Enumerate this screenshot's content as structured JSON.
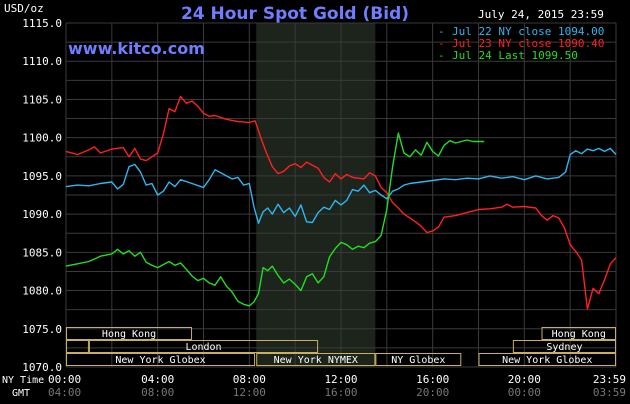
{
  "header": {
    "unit": "USD/oz",
    "title": "24 Hour Spot Gold (Bid)",
    "date": "July 24, 2015 23:59",
    "website": "www.kitco.com"
  },
  "colors": {
    "background": "#000000",
    "grid": "#3a3a3a",
    "shade": "#1c241c",
    "title": "#6f7dff",
    "axis_text": "#ffffff",
    "band_border": "#c8b060",
    "band_text": "#ffffff"
  },
  "legend": [
    {
      "label": "Jul 22 NY close 1094.00",
      "color": "#2fb6f0"
    },
    {
      "label": "Jul 23 NY close 1090.40",
      "color": "#ff2020"
    },
    {
      "label": "Jul 24 Last 1099.50",
      "color": "#22dd22"
    }
  ],
  "axes": {
    "y_ticks": [
      "1115.0",
      "1110.0",
      "1105.0",
      "1100.0",
      "1095.0",
      "1090.0",
      "1085.0",
      "1080.0",
      "1075.0",
      "1070.0"
    ],
    "x_ticks_ny": [
      "00:00",
      "04:00",
      "08:00",
      "12:00",
      "16:00",
      "20:00",
      "23:59"
    ],
    "x_ticks_gmt": [
      "04:00",
      "08:00",
      "12:00",
      "16:00",
      "20:00",
      "00:00",
      "03:59"
    ],
    "ny_time_label": "NY Time",
    "gmt_label": "GMT"
  },
  "markets": {
    "row1": [
      {
        "label": "Hong Kong",
        "start": 0,
        "end": 5.5
      },
      {
        "label": "Hong Kong",
        "start": 20.75,
        "end": 24
      }
    ],
    "row2": [
      {
        "label": "",
        "start": 0,
        "end": 1
      },
      {
        "label": "London",
        "start": 1,
        "end": 11
      },
      {
        "label": "Sydney",
        "start": 19.5,
        "end": 24
      }
    ],
    "row3": [
      {
        "label": "New York Globex",
        "start": 0,
        "end": 8.25
      },
      {
        "label": "New York NYMEX",
        "start": 8.3,
        "end": 13.5
      },
      {
        "label": "NY Globex",
        "start": 13.5,
        "end": 17.25
      },
      {
        "label": "New York Globex",
        "start": 18,
        "end": 24
      }
    ]
  },
  "chart_data": {
    "type": "line",
    "title": "24 Hour Spot Gold (Bid)",
    "ylabel": "USD/oz",
    "xlabel": "",
    "x_unit": "hours (NY time)",
    "xlim": [
      0,
      24
    ],
    "ylim": [
      1070,
      1115
    ],
    "shaded_range_hours": [
      8.3,
      13.5
    ],
    "series": [
      {
        "name": "Jul 22 NY close 1094.00",
        "color": "#2fb6f0",
        "points": [
          [
            0,
            1093.6
          ],
          [
            0.5,
            1093.8
          ],
          [
            1,
            1093.7
          ],
          [
            1.5,
            1094.0
          ],
          [
            2,
            1094.2
          ],
          [
            2.25,
            1093.3
          ],
          [
            2.5,
            1093.9
          ],
          [
            2.75,
            1096.2
          ],
          [
            3,
            1096.5
          ],
          [
            3.25,
            1095.5
          ],
          [
            3.5,
            1093.8
          ],
          [
            3.75,
            1094.0
          ],
          [
            4,
            1092.5
          ],
          [
            4.25,
            1093.0
          ],
          [
            4.5,
            1094.2
          ],
          [
            4.75,
            1093.6
          ],
          [
            5,
            1094.5
          ],
          [
            5.5,
            1094.0
          ],
          [
            6,
            1093.5
          ],
          [
            6.25,
            1094.5
          ],
          [
            6.5,
            1095.8
          ],
          [
            6.75,
            1095.4
          ],
          [
            7,
            1095.0
          ],
          [
            7.25,
            1094.6
          ],
          [
            7.5,
            1094.8
          ],
          [
            7.75,
            1093.8
          ],
          [
            8,
            1094.0
          ],
          [
            8.2,
            1091.0
          ],
          [
            8.4,
            1088.8
          ],
          [
            8.6,
            1090.3
          ],
          [
            8.8,
            1090.8
          ],
          [
            9,
            1090.0
          ],
          [
            9.25,
            1091.3
          ],
          [
            9.5,
            1090.2
          ],
          [
            9.75,
            1090.8
          ],
          [
            10,
            1089.7
          ],
          [
            10.25,
            1091.2
          ],
          [
            10.5,
            1089.0
          ],
          [
            10.75,
            1088.9
          ],
          [
            11,
            1090.2
          ],
          [
            11.25,
            1090.9
          ],
          [
            11.5,
            1090.6
          ],
          [
            11.75,
            1091.8
          ],
          [
            12,
            1091.2
          ],
          [
            12.25,
            1091.8
          ],
          [
            12.5,
            1093.2
          ],
          [
            12.75,
            1093.0
          ],
          [
            13,
            1093.8
          ],
          [
            13.25,
            1092.8
          ],
          [
            13.5,
            1093.1
          ],
          [
            13.75,
            1092.5
          ],
          [
            14,
            1092.0
          ],
          [
            14.25,
            1093.0
          ],
          [
            14.5,
            1093.3
          ],
          [
            14.75,
            1093.8
          ],
          [
            15,
            1094.0
          ],
          [
            15.5,
            1094.2
          ],
          [
            16,
            1094.4
          ],
          [
            16.5,
            1094.6
          ],
          [
            17,
            1094.5
          ],
          [
            17.5,
            1094.7
          ],
          [
            18,
            1094.6
          ],
          [
            18.5,
            1095.0
          ],
          [
            19,
            1094.7
          ],
          [
            19.5,
            1094.9
          ],
          [
            20,
            1094.5
          ],
          [
            20.5,
            1095.0
          ],
          [
            21,
            1094.6
          ],
          [
            21.5,
            1094.8
          ],
          [
            21.8,
            1095.5
          ],
          [
            22,
            1097.8
          ],
          [
            22.25,
            1098.3
          ],
          [
            22.5,
            1097.9
          ],
          [
            22.75,
            1098.5
          ],
          [
            23,
            1098.3
          ],
          [
            23.25,
            1098.6
          ],
          [
            23.5,
            1098.2
          ],
          [
            23.75,
            1098.6
          ],
          [
            24,
            1097.8
          ]
        ]
      },
      {
        "name": "Jul 23 NY close 1090.40",
        "color": "#ff2020",
        "points": [
          [
            0,
            1098.2
          ],
          [
            0.5,
            1097.8
          ],
          [
            1,
            1098.4
          ],
          [
            1.25,
            1098.8
          ],
          [
            1.5,
            1098.0
          ],
          [
            2,
            1098.5
          ],
          [
            2.5,
            1098.7
          ],
          [
            2.75,
            1097.5
          ],
          [
            3,
            1098.6
          ],
          [
            3.25,
            1097.2
          ],
          [
            3.5,
            1097.0
          ],
          [
            3.75,
            1097.5
          ],
          [
            4,
            1098.0
          ],
          [
            4.25,
            1100.5
          ],
          [
            4.5,
            1103.8
          ],
          [
            4.75,
            1103.4
          ],
          [
            5,
            1105.4
          ],
          [
            5.25,
            1104.5
          ],
          [
            5.5,
            1104.8
          ],
          [
            5.75,
            1104.1
          ],
          [
            6,
            1103.2
          ],
          [
            6.25,
            1102.8
          ],
          [
            6.5,
            1102.9
          ],
          [
            7,
            1102.4
          ],
          [
            7.5,
            1102.1
          ],
          [
            8,
            1102.0
          ],
          [
            8.25,
            1102.2
          ],
          [
            8.5,
            1100.0
          ],
          [
            8.75,
            1098.0
          ],
          [
            9,
            1096.2
          ],
          [
            9.25,
            1095.3
          ],
          [
            9.5,
            1095.6
          ],
          [
            9.75,
            1096.3
          ],
          [
            10,
            1096.6
          ],
          [
            10.25,
            1096.1
          ],
          [
            10.5,
            1096.8
          ],
          [
            11,
            1096.0
          ],
          [
            11.25,
            1094.8
          ],
          [
            11.5,
            1094.2
          ],
          [
            11.75,
            1095.3
          ],
          [
            12,
            1094.6
          ],
          [
            12.25,
            1095.2
          ],
          [
            12.5,
            1094.8
          ],
          [
            13,
            1094.6
          ],
          [
            13.25,
            1095.4
          ],
          [
            13.5,
            1095.0
          ],
          [
            13.75,
            1093.5
          ],
          [
            14,
            1092.8
          ],
          [
            14.25,
            1091.5
          ],
          [
            14.5,
            1090.8
          ],
          [
            14.75,
            1090.0
          ],
          [
            15,
            1089.5
          ],
          [
            15.25,
            1089.0
          ],
          [
            15.5,
            1088.4
          ],
          [
            15.75,
            1087.6
          ],
          [
            16,
            1087.8
          ],
          [
            16.25,
            1088.3
          ],
          [
            16.5,
            1089.6
          ],
          [
            17,
            1089.8
          ],
          [
            17.5,
            1090.2
          ],
          [
            18,
            1090.6
          ],
          [
            18.5,
            1090.7
          ],
          [
            19,
            1090.9
          ],
          [
            19.25,
            1091.3
          ],
          [
            19.5,
            1090.9
          ],
          [
            20,
            1091.0
          ],
          [
            20.5,
            1090.8
          ],
          [
            20.75,
            1089.8
          ],
          [
            21,
            1089.2
          ],
          [
            21.25,
            1089.8
          ],
          [
            21.5,
            1089.5
          ],
          [
            21.75,
            1088.2
          ],
          [
            22,
            1086.0
          ],
          [
            22.25,
            1085.1
          ],
          [
            22.5,
            1084.0
          ],
          [
            22.75,
            1077.6
          ],
          [
            23,
            1080.3
          ],
          [
            23.25,
            1079.6
          ],
          [
            23.5,
            1081.4
          ],
          [
            23.75,
            1083.5
          ],
          [
            24,
            1084.3
          ]
        ]
      },
      {
        "name": "Jul 24 Last 1099.50",
        "color": "#22dd22",
        "points": [
          [
            0,
            1083.2
          ],
          [
            0.5,
            1083.5
          ],
          [
            1,
            1083.8
          ],
          [
            1.5,
            1084.5
          ],
          [
            2,
            1084.8
          ],
          [
            2.25,
            1085.4
          ],
          [
            2.5,
            1084.8
          ],
          [
            2.75,
            1085.2
          ],
          [
            3,
            1084.5
          ],
          [
            3.25,
            1085.0
          ],
          [
            3.5,
            1083.7
          ],
          [
            3.75,
            1083.3
          ],
          [
            4,
            1083.0
          ],
          [
            4.5,
            1083.8
          ],
          [
            4.75,
            1083.3
          ],
          [
            5,
            1083.6
          ],
          [
            5.25,
            1082.8
          ],
          [
            5.5,
            1081.9
          ],
          [
            5.75,
            1081.3
          ],
          [
            6,
            1081.6
          ],
          [
            6.25,
            1081.0
          ],
          [
            6.5,
            1080.7
          ],
          [
            6.75,
            1081.8
          ],
          [
            7,
            1080.6
          ],
          [
            7.25,
            1079.8
          ],
          [
            7.5,
            1078.6
          ],
          [
            7.75,
            1078.2
          ],
          [
            8,
            1078.0
          ],
          [
            8.2,
            1078.5
          ],
          [
            8.4,
            1079.6
          ],
          [
            8.6,
            1083.0
          ],
          [
            8.8,
            1082.6
          ],
          [
            9,
            1083.2
          ],
          [
            9.25,
            1082.0
          ],
          [
            9.5,
            1081.0
          ],
          [
            9.75,
            1081.5
          ],
          [
            10,
            1080.8
          ],
          [
            10.25,
            1080.0
          ],
          [
            10.5,
            1081.8
          ],
          [
            10.75,
            1082.2
          ],
          [
            11,
            1081.0
          ],
          [
            11.25,
            1081.8
          ],
          [
            11.5,
            1084.4
          ],
          [
            11.75,
            1085.5
          ],
          [
            12,
            1086.3
          ],
          [
            12.25,
            1086.0
          ],
          [
            12.5,
            1085.4
          ],
          [
            12.75,
            1085.8
          ],
          [
            13,
            1085.6
          ],
          [
            13.25,
            1086.2
          ],
          [
            13.5,
            1086.4
          ],
          [
            13.75,
            1087.2
          ],
          [
            14,
            1090.6
          ],
          [
            14.25,
            1096.2
          ],
          [
            14.5,
            1100.6
          ],
          [
            14.75,
            1098.0
          ],
          [
            15,
            1097.5
          ],
          [
            15.25,
            1098.4
          ],
          [
            15.5,
            1097.7
          ],
          [
            15.75,
            1099.4
          ],
          [
            16,
            1098.2
          ],
          [
            16.25,
            1097.6
          ],
          [
            16.5,
            1099.0
          ],
          [
            16.75,
            1099.6
          ],
          [
            17,
            1099.3
          ],
          [
            17.25,
            1099.5
          ],
          [
            17.5,
            1099.7
          ],
          [
            17.75,
            1099.5
          ],
          [
            18,
            1099.5
          ],
          [
            18.25,
            1099.5
          ]
        ]
      }
    ]
  }
}
